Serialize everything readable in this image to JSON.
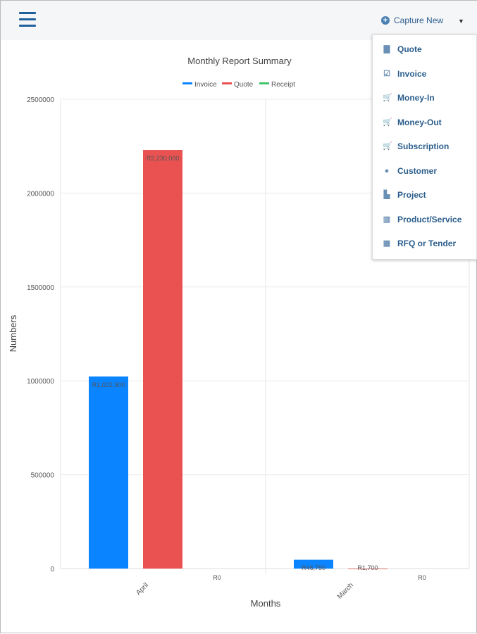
{
  "header": {
    "capture_label": "Capture New"
  },
  "menu": [
    {
      "label": "Quote",
      "icon": "clipboard-icon"
    },
    {
      "label": "Invoice",
      "icon": "checked-clipboard-icon"
    },
    {
      "label": "Money-In",
      "icon": "cart-in-icon"
    },
    {
      "label": "Money-Out",
      "icon": "cart-out-icon"
    },
    {
      "label": "Subscription",
      "icon": "cart-icon"
    },
    {
      "label": "Customer",
      "icon": "user-icon"
    },
    {
      "label": "Project",
      "icon": "file-icon"
    },
    {
      "label": "Product/Service",
      "icon": "barcode-icon"
    },
    {
      "label": "RFQ or Tender",
      "icon": "calculator-icon"
    }
  ],
  "chart_data": {
    "type": "bar",
    "title": "Monthly Report Summary",
    "xlabel": "Months",
    "ylabel": "Numbers",
    "categories": [
      "April",
      "March"
    ],
    "ylim": [
      0,
      2500000
    ],
    "yticks": [
      "0",
      "500000",
      "1000000",
      "1500000",
      "2000000",
      "2500000"
    ],
    "series": [
      {
        "name": "Invoice",
        "color": "#0a84ff",
        "values": [
          1022900,
          46750
        ],
        "labels": [
          "R1,022,900",
          "R46,750"
        ]
      },
      {
        "name": "Quote",
        "color": "#ea5252",
        "values": [
          2230000,
          1700
        ],
        "labels": [
          "R2,230,000",
          "R1,700"
        ]
      },
      {
        "name": "Receipt",
        "color": "#3fc56a",
        "values": [
          0,
          0
        ],
        "labels": [
          "R0",
          "R0"
        ]
      }
    ]
  }
}
